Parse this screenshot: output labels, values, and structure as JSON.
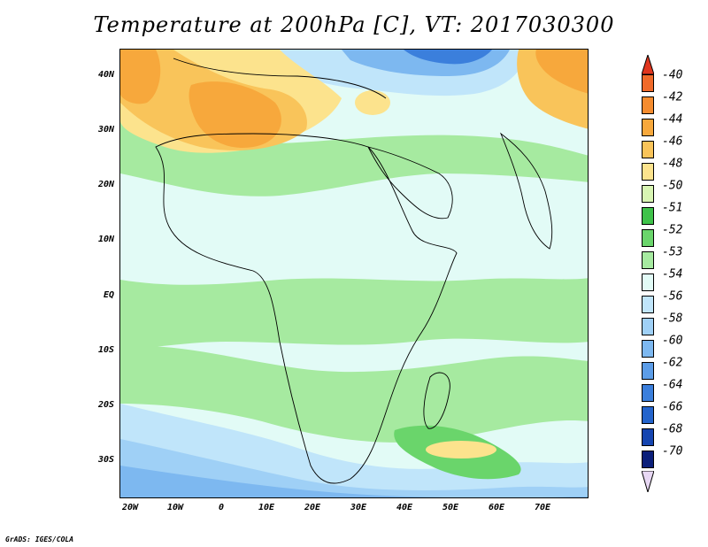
{
  "title": "Temperature at 200hPa [C], VT: 2017030300",
  "footer": "GrADS: IGES/COLA",
  "map": {
    "variable": "Temperature at 200hPa",
    "units": "C",
    "valid_time": "2017030300",
    "lon_range": [
      -23,
      80
    ],
    "lat_range": [
      -37,
      45
    ]
  },
  "axes": {
    "y_ticks": [
      "40N",
      "30N",
      "20N",
      "10N",
      "EQ",
      "10S",
      "20S",
      "30S"
    ],
    "x_ticks": [
      "20W",
      "10W",
      "0",
      "10E",
      "20E",
      "30E",
      "40E",
      "50E",
      "60E",
      "70E"
    ]
  },
  "colorbar": {
    "labels": [
      "-40",
      "-42",
      "-44",
      "-46",
      "-48",
      "-50",
      "-51",
      "-52",
      "-53",
      "-54",
      "-56",
      "-58",
      "-60",
      "-62",
      "-64",
      "-66",
      "-68",
      "-70"
    ],
    "colors": [
      "#f06a2a",
      "#f58c2f",
      "#f7a83c",
      "#f9c45a",
      "#fce38d",
      "#d8f5b3",
      "#3fc24a",
      "#6ad56b",
      "#a6eaa0",
      "#e2fbf6",
      "#c0e5fa",
      "#9fd0f6",
      "#7db8f0",
      "#5c9de8",
      "#3b7fdc",
      "#2464cc",
      "#1545b0",
      "#0b1f7a"
    ],
    "top_arrow_color": "#e0351e",
    "bottom_arrow_color": "#e8d8f4"
  }
}
